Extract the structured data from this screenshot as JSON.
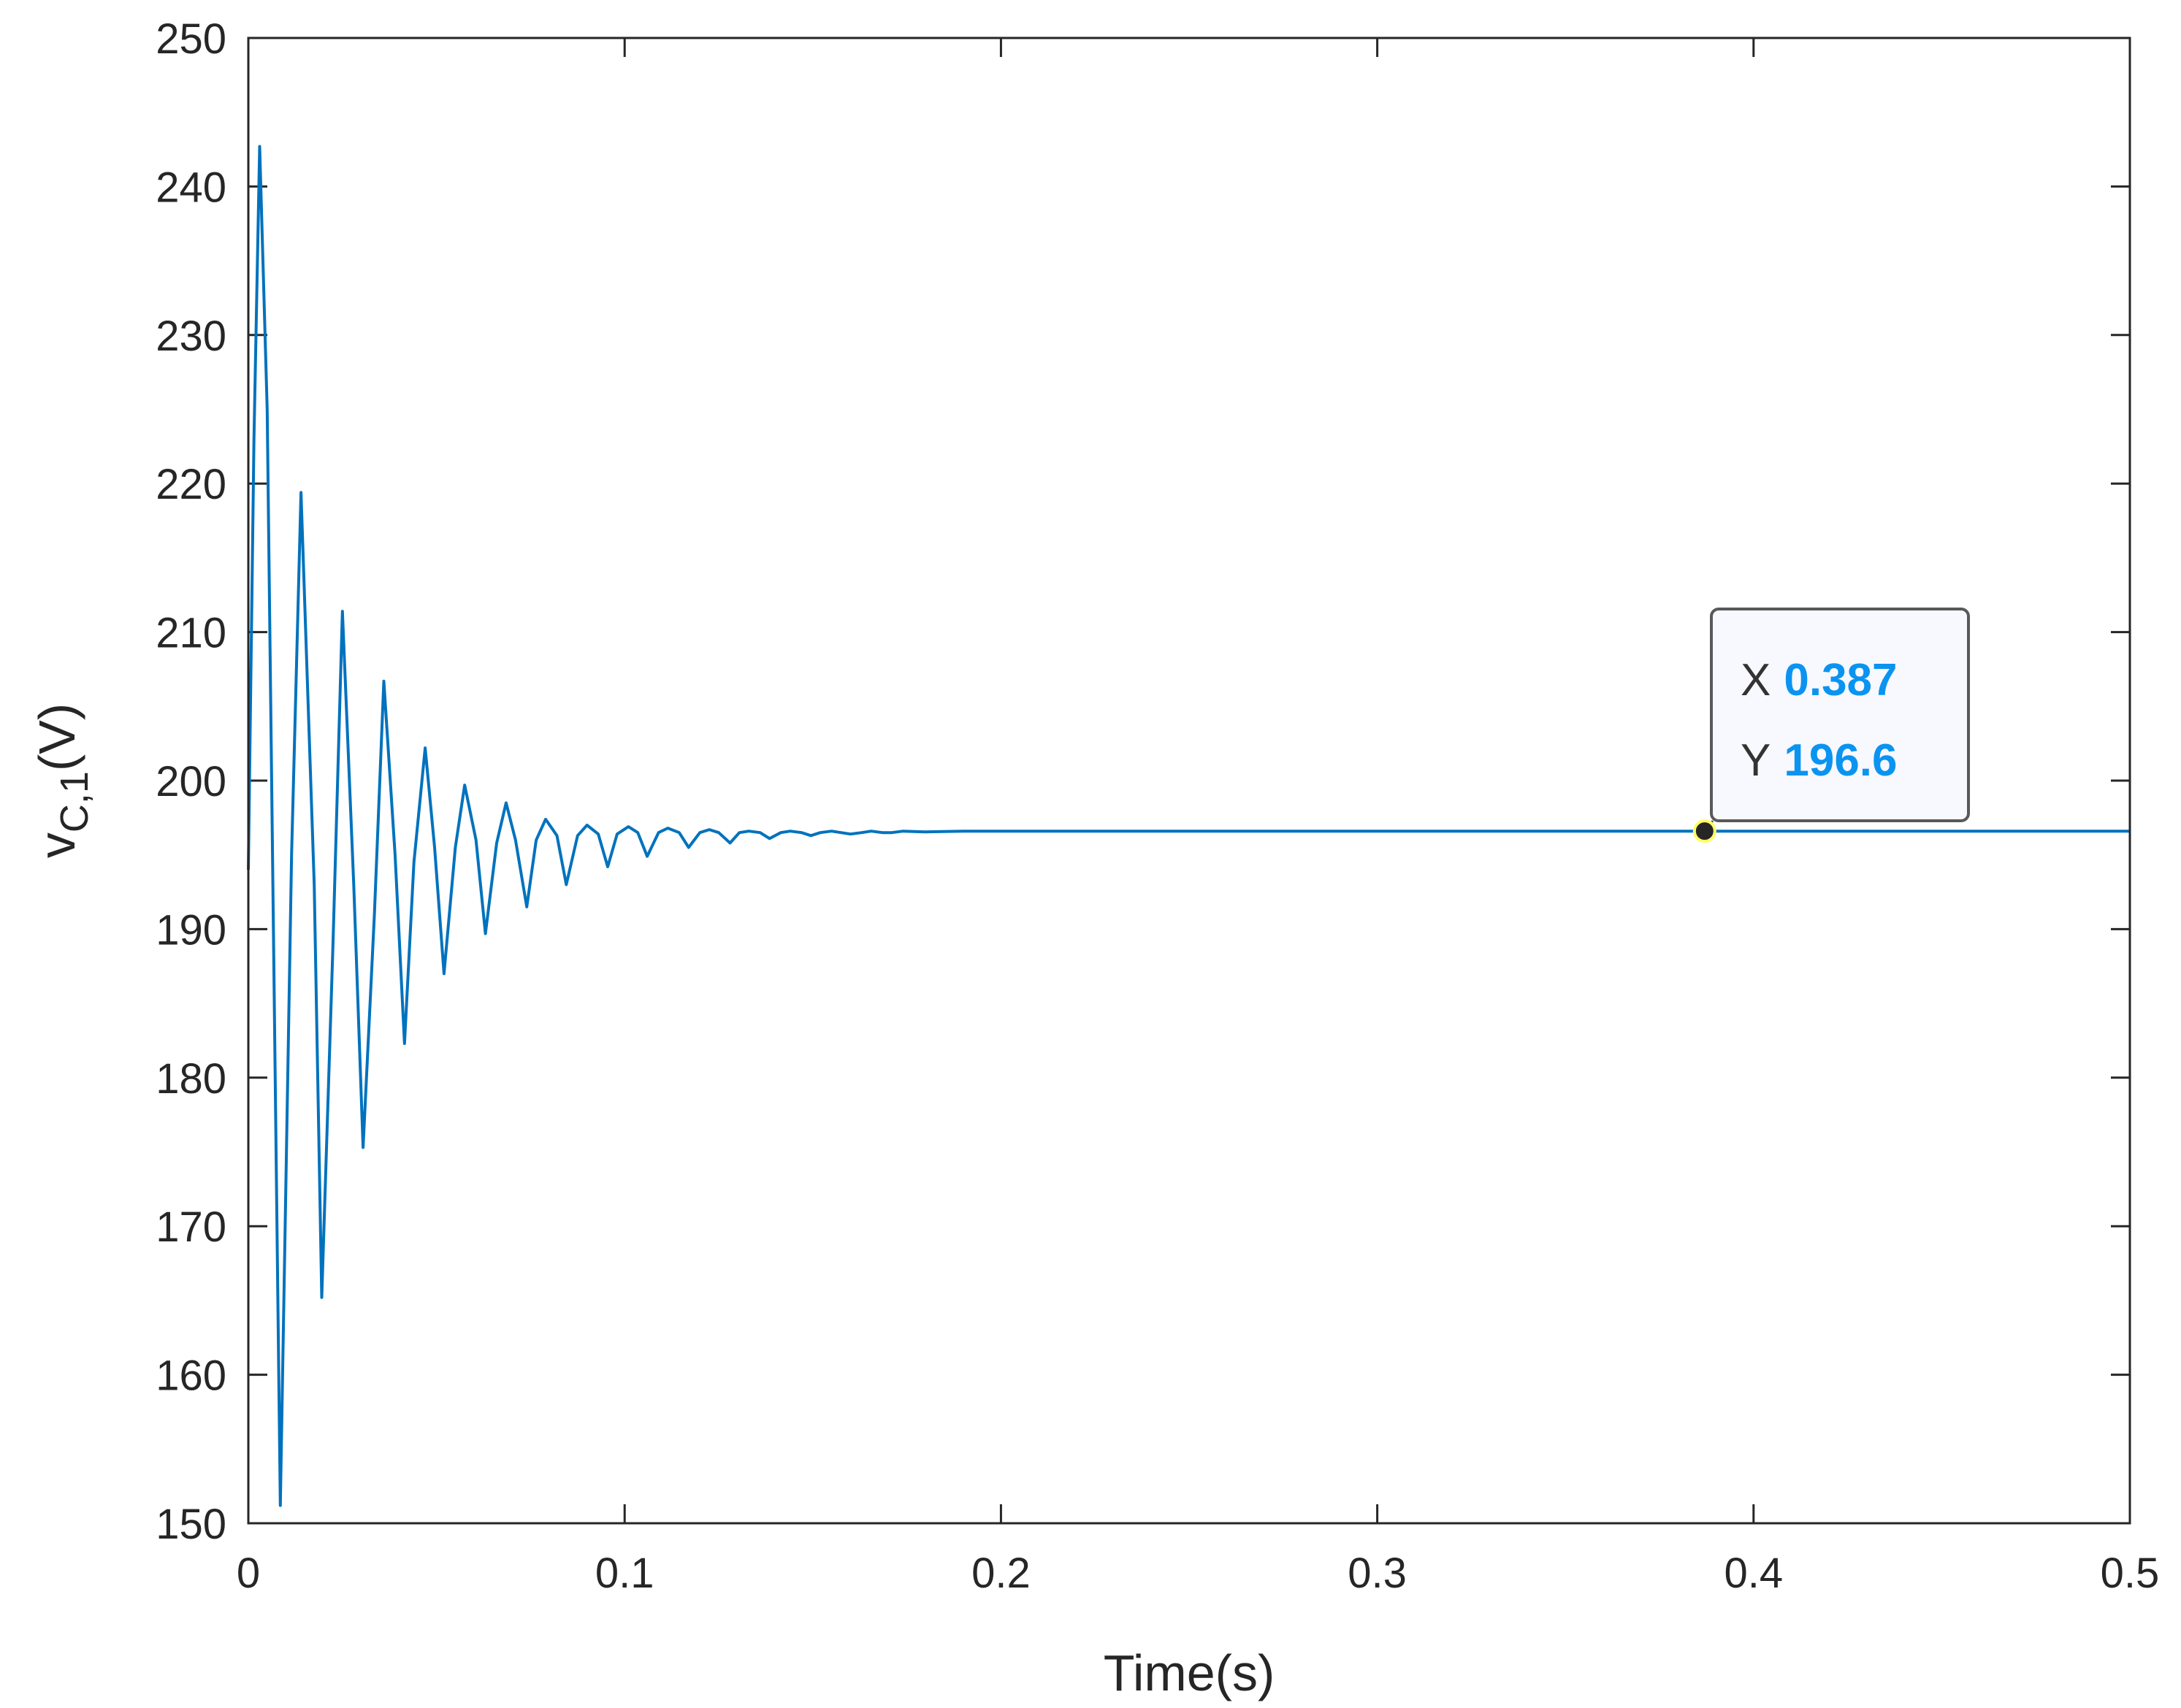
{
  "chart_data": {
    "type": "line",
    "xlabel": "Time(s)",
    "ylabel": {
      "base": "v",
      "subscript": "C,1",
      "suffix": "(V)"
    },
    "xlim": [
      0,
      0.5
    ],
    "ylim": [
      150,
      250
    ],
    "x_ticks": [
      "0",
      "0.1",
      "0.2",
      "0.3",
      "0.4",
      "0.5"
    ],
    "y_ticks": [
      "150",
      "160",
      "170",
      "180",
      "190",
      "200",
      "210",
      "220",
      "230",
      "240",
      "250"
    ],
    "grid": false,
    "series": [
      {
        "color": "#0072bd",
        "x": [
          0,
          0.0015,
          0.003,
          0.005,
          0.0085,
          0.0115,
          0.014,
          0.0175,
          0.0195,
          0.0225,
          0.025,
          0.028,
          0.0305,
          0.0335,
          0.036,
          0.039,
          0.0415,
          0.044,
          0.047,
          0.0495,
          0.052,
          0.055,
          0.0575,
          0.0605,
          0.063,
          0.066,
          0.0685,
          0.071,
          0.074,
          0.0765,
          0.079,
          0.082,
          0.0845,
          0.0875,
          0.09,
          0.093,
          0.0955,
          0.098,
          0.101,
          0.1035,
          0.106,
          0.109,
          0.1115,
          0.1145,
          0.117,
          0.12,
          0.1225,
          0.125,
          0.128,
          0.1305,
          0.133,
          0.136,
          0.1385,
          0.1415,
          0.144,
          0.147,
          0.1495,
          0.152,
          0.155,
          0.1575,
          0.16,
          0.163,
          0.1655,
          0.1685,
          0.171,
          0.174,
          0.18,
          0.19,
          0.2,
          0.25,
          0.3,
          0.35,
          0.387,
          0.45,
          0.5
        ],
        "y": [
          194,
          223,
          242.7,
          225,
          151.2,
          195,
          219.4,
          193,
          165.2,
          189,
          211.4,
          193,
          175.3,
          191,
          206.7,
          195,
          182.3,
          194.5,
          202.2,
          195.5,
          187,
          195.5,
          199.7,
          196,
          189.7,
          195.8,
          198.5,
          196,
          191.5,
          196,
          197.4,
          196.3,
          193,
          196.3,
          197,
          196.4,
          194.2,
          196.4,
          196.9,
          196.5,
          194.9,
          196.5,
          196.8,
          196.5,
          195.5,
          196.5,
          196.7,
          196.5,
          195.8,
          196.5,
          196.6,
          196.5,
          196.1,
          196.5,
          196.6,
          196.5,
          196.3,
          196.5,
          196.6,
          196.5,
          196.4,
          196.5,
          196.6,
          196.5,
          196.5,
          196.6,
          196.55,
          196.6,
          196.6,
          196.6,
          196.6,
          196.6,
          196.6,
          196.6,
          196.6
        ]
      }
    ],
    "datatip": {
      "x": 0.387,
      "y": 196.6,
      "x_label": "X",
      "x_value": "0.387",
      "y_label": "Y",
      "y_value": "196.6"
    }
  }
}
